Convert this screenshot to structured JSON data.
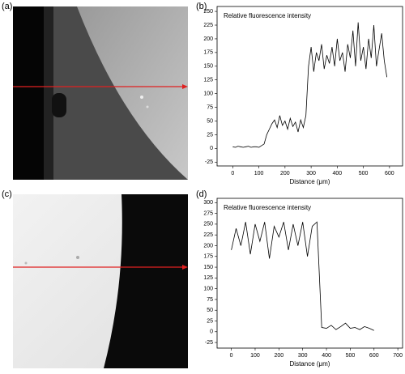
{
  "panel_labels": [
    "(a)",
    "(b)",
    "(c)",
    "(d)"
  ],
  "chart_data": [
    {
      "type": "line",
      "title": "Relative fluorescence intensity",
      "xlabel": "Distance (μm)",
      "xlim": [
        -60,
        650
      ],
      "ylim": [
        -32,
        259
      ],
      "xticks": [
        0,
        100,
        200,
        300,
        400,
        500,
        600
      ],
      "yticks": [
        -25,
        0,
        25,
        50,
        75,
        100,
        125,
        150,
        175,
        200,
        225,
        250
      ],
      "series": [
        {
          "color": "#000000",
          "x": [
            0,
            10,
            20,
            30,
            40,
            50,
            60,
            70,
            80,
            90,
            100,
            110,
            120,
            130,
            140,
            150,
            160,
            170,
            180,
            190,
            200,
            210,
            220,
            230,
            240,
            250,
            260,
            270,
            280,
            290,
            300,
            310,
            320,
            330,
            340,
            350,
            360,
            370,
            380,
            390,
            400,
            410,
            420,
            430,
            440,
            450,
            460,
            470,
            480,
            490,
            500,
            510,
            520,
            530,
            540,
            550,
            560,
            570,
            580,
            590
          ],
          "values": [
            3,
            2,
            4,
            3,
            2,
            3,
            4,
            2,
            3,
            3,
            2,
            5,
            8,
            25,
            35,
            45,
            52,
            38,
            60,
            42,
            50,
            35,
            55,
            40,
            48,
            30,
            52,
            38,
            60,
            150,
            185,
            140,
            175,
            160,
            190,
            145,
            170,
            155,
            185,
            150,
            200,
            160,
            175,
            140,
            190,
            165,
            215,
            150,
            230,
            160,
            185,
            145,
            200,
            165,
            225,
            150,
            180,
            210,
            160,
            130
          ]
        }
      ]
    },
    {
      "type": "line",
      "title": "Relative fluorescence intensity",
      "xlabel": "Distance (μm)",
      "xlim": [
        -60,
        720
      ],
      "ylim": [
        -38,
        310
      ],
      "xticks": [
        0,
        100,
        200,
        300,
        400,
        500,
        600,
        700
      ],
      "yticks": [
        -25,
        0,
        25,
        50,
        75,
        100,
        125,
        150,
        175,
        200,
        225,
        250,
        275,
        300
      ],
      "series": [
        {
          "color": "#000000",
          "x": [
            0,
            20,
            40,
            60,
            80,
            100,
            120,
            140,
            160,
            180,
            200,
            220,
            240,
            260,
            280,
            300,
            320,
            340,
            360,
            380,
            400,
            420,
            440,
            460,
            480,
            500,
            520,
            540,
            560,
            580,
            600
          ],
          "values": [
            190,
            240,
            200,
            255,
            180,
            250,
            210,
            255,
            170,
            245,
            220,
            255,
            190,
            250,
            200,
            255,
            175,
            245,
            255,
            10,
            8,
            15,
            5,
            12,
            20,
            8,
            10,
            5,
            12,
            8,
            3
          ]
        }
      ]
    }
  ]
}
